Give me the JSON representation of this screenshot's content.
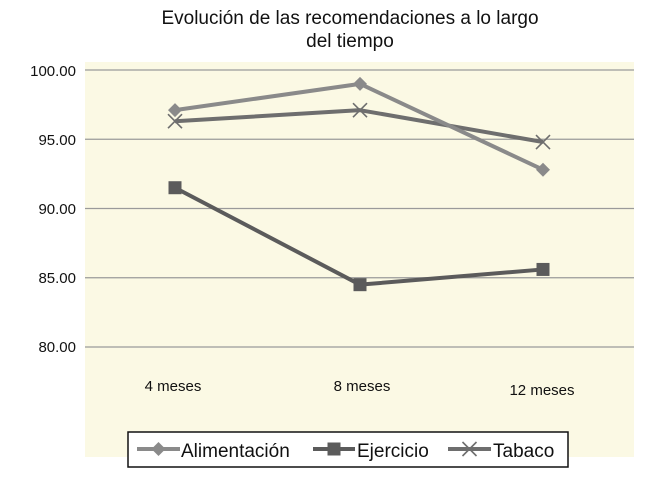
{
  "chart_data": {
    "type": "line",
    "title_lines": [
      "Evolución de las recomendaciones a lo largo",
      "del tiempo"
    ],
    "categories": [
      "4 meses",
      "8 meses",
      "12 meses"
    ],
    "series": [
      {
        "name": "Alimentación",
        "marker": "diamond",
        "values": [
          97.1,
          99.0,
          92.8
        ]
      },
      {
        "name": "Ejercicio",
        "marker": "square",
        "values": [
          91.5,
          84.5,
          85.6
        ]
      },
      {
        "name": "Tabaco",
        "marker": "x",
        "values": [
          96.3,
          97.1,
          94.8
        ]
      }
    ],
    "yticks": [
      "100.00",
      "95.00",
      "90.00",
      "85.00",
      "80.00"
    ],
    "ylim": [
      80,
      100
    ],
    "grid": true,
    "legend": "bottom",
    "colors": {
      "plot_background": "#fbf9e4",
      "series": [
        "#8a8a8a",
        "#5b5b5b",
        "#6e6e6e"
      ],
      "grid": "#9a9a9a"
    }
  }
}
